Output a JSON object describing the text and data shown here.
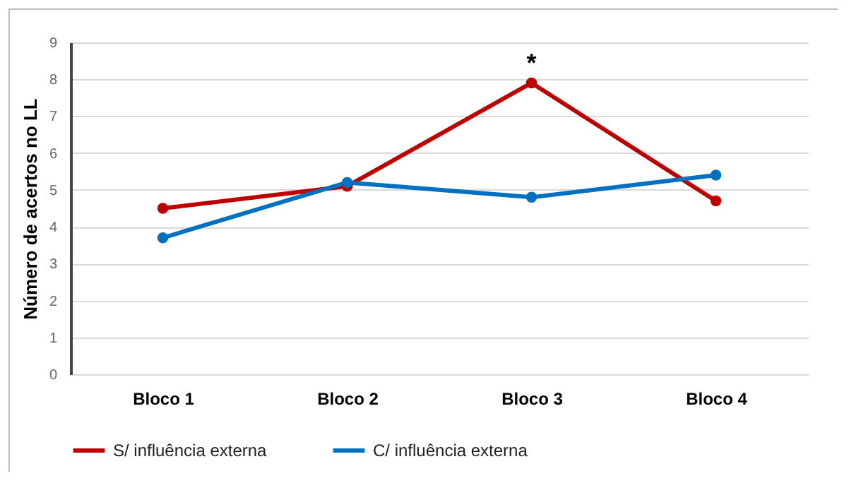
{
  "chart_data": {
    "type": "line",
    "ylabel": "Número de acertos no LL",
    "categories": [
      "Bloco 1",
      "Bloco 2",
      "Bloco 3",
      "Bloco 4"
    ],
    "series": [
      {
        "name": "S/ influência externa",
        "color": "#c00000",
        "values": [
          4.5,
          5.1,
          7.9,
          4.7
        ]
      },
      {
        "name": "C/ influência externa",
        "color": "#0070c0",
        "values": [
          3.7,
          5.2,
          4.8,
          5.4
        ]
      }
    ],
    "ylim": [
      0,
      9
    ],
    "yticks": [
      0,
      1,
      2,
      3,
      4,
      5,
      6,
      7,
      8,
      9
    ],
    "annotations": [
      "*"
    ],
    "grid": "y",
    "legend": "bottom",
    "marker": "circle",
    "line_style": "solid"
  }
}
